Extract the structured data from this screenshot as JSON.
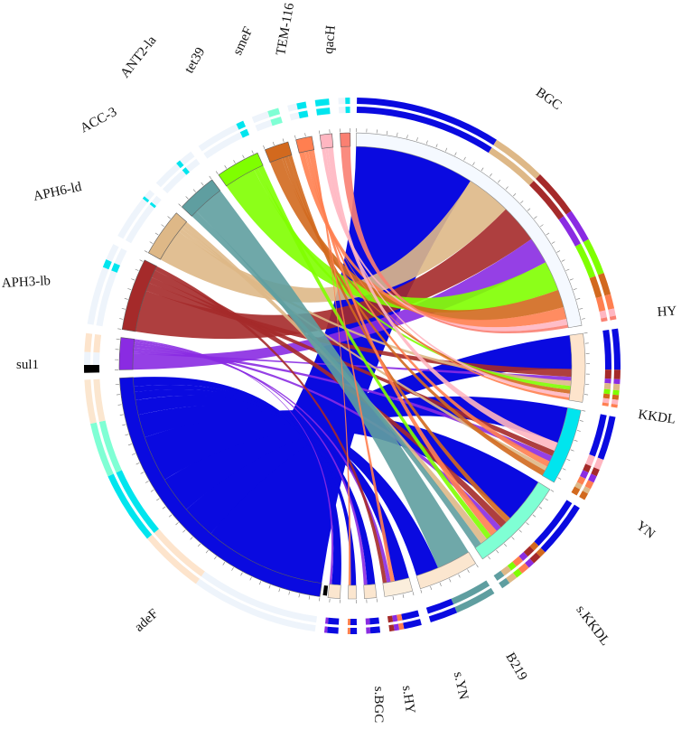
{
  "diagram": {
    "type": "circos",
    "samples": [
      {
        "id": "BGC",
        "label": "BGC"
      },
      {
        "id": "HY",
        "label": "HY"
      },
      {
        "id": "KKDL",
        "label": "KKDL"
      },
      {
        "id": "YN",
        "label": "YN"
      },
      {
        "id": "sKKDL",
        "label": "s.KKDL"
      },
      {
        "id": "B219",
        "label": "B219"
      },
      {
        "id": "sYN",
        "label": "s.YN"
      },
      {
        "id": "sHY",
        "label": "s.HY"
      },
      {
        "id": "sBGC",
        "label": "s.BGC"
      }
    ],
    "genes": [
      {
        "id": "adeF",
        "label": "adeF"
      },
      {
        "id": "sul1",
        "label": "sul1"
      },
      {
        "id": "APH3lb",
        "label": "APH3-lb"
      },
      {
        "id": "APH6ld",
        "label": "APH6-ld"
      },
      {
        "id": "ACC3",
        "label": "ACC-3"
      },
      {
        "id": "ANT2la",
        "label": "ANT2-la"
      },
      {
        "id": "tet39",
        "label": "tet39"
      },
      {
        "id": "smeF",
        "label": "smeF"
      },
      {
        "id": "TEM116",
        "label": "TEM-116"
      },
      {
        "id": "qacH",
        "label": "qacH"
      }
    ],
    "colors": {
      "adeF": "#0a0ae0",
      "sul1": "#8a2be2",
      "APH3lb": "#a52a2a",
      "APH6ld": "#deb887",
      "ACC3": "#5f9ea0",
      "ANT2la": "#7fff00",
      "tet39": "#d2691e",
      "smeF": "#ff7f50",
      "TEM116": "#ffb6c1",
      "qacH": "#fa8072",
      "BGC": "#f5f9ff",
      "HY": "#fde4cc",
      "KKDL": "#00e5ee",
      "YN": "#7fffd4",
      "sKKDL": "#fbe6cf",
      "B219": "#fbeedc",
      "sYN": "#fbe6cf",
      "sHY": "#fbe6cf",
      "sBGC": "#fbe6cf",
      "black": "#000000"
    }
  }
}
